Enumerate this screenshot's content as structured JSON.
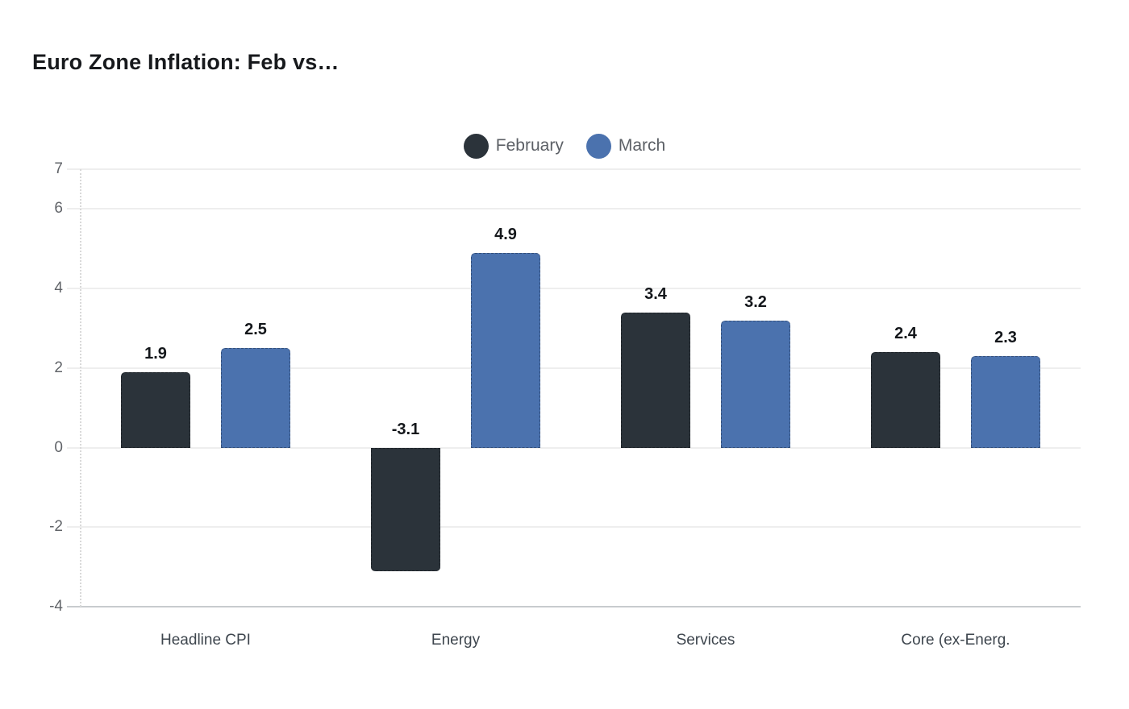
{
  "title": "Euro Zone Inflation: Feb vs…",
  "legend": [
    {
      "label": "February",
      "color": "#2b333a"
    },
    {
      "label": "March",
      "color": "#4b72ae"
    }
  ],
  "chart_data": {
    "type": "bar",
    "title": "Euro Zone Inflation: Feb vs…",
    "categories": [
      "Headline CPI",
      "Energy",
      "Services",
      "Core (ex-Energ."
    ],
    "series": [
      {
        "name": "February",
        "color": "#2b333a",
        "values": [
          1.9,
          -3.1,
          3.4,
          2.4
        ]
      },
      {
        "name": "March",
        "color": "#4b72ae",
        "values": [
          2.5,
          4.9,
          3.2,
          2.3
        ]
      }
    ],
    "value_labels": {
      "February": [
        "1.9",
        "-3.1",
        "3.4",
        "2.4"
      ],
      "March": [
        "2.5",
        "4.9",
        "3.2",
        "2.3"
      ]
    },
    "xlabel": "",
    "ylabel": "",
    "ylim": [
      -4,
      7
    ],
    "yticks": [
      7,
      6,
      4,
      2,
      0,
      -2,
      -4
    ],
    "grid": true,
    "legend_position": "top-center"
  }
}
